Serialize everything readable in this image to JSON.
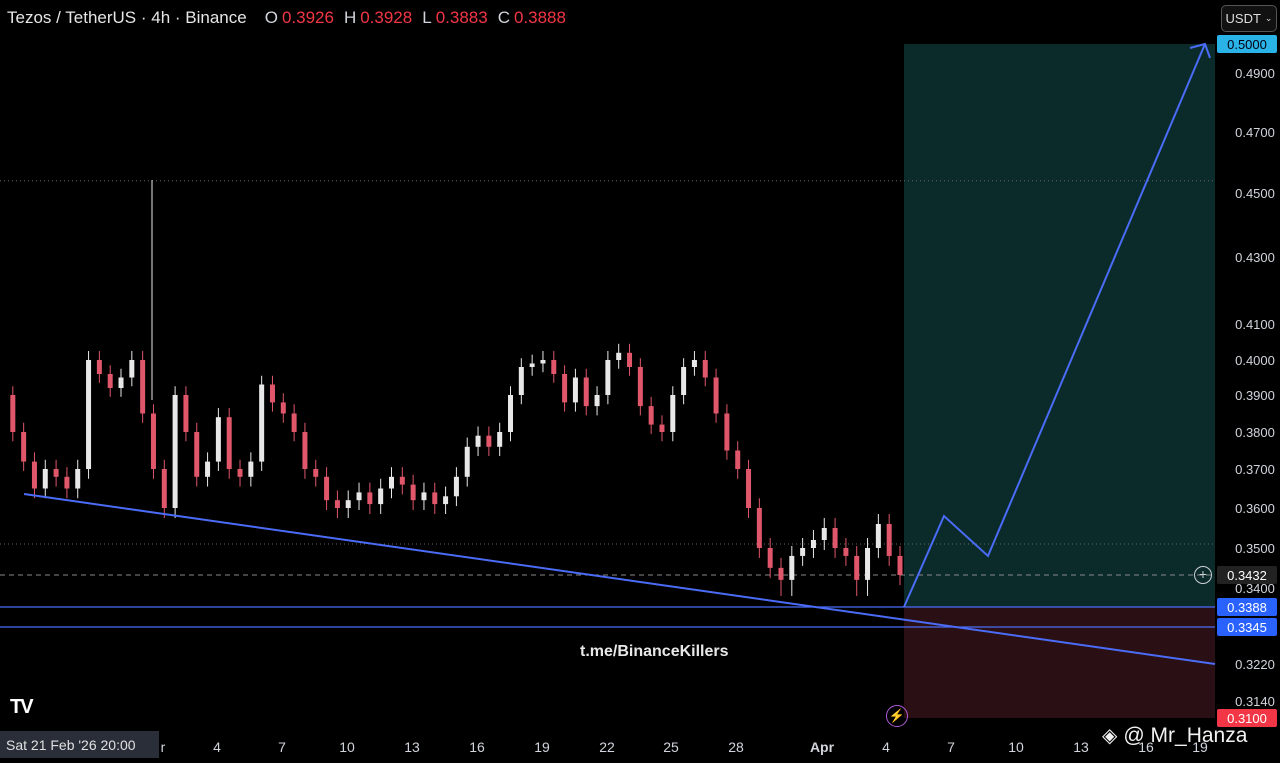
{
  "header": {
    "symbol": "Tezos / TetherUS · 4h · Binance",
    "open_label": "O",
    "open": "0.3926",
    "high_label": "H",
    "high": "0.3928",
    "low_label": "L",
    "low": "0.3883",
    "close_label": "C",
    "close": "0.3888"
  },
  "currency_button": "USDT",
  "date_pill": "Sat 21 Feb '26   20:00",
  "watermark": "t.me/BinanceKillers",
  "credit": "@ Mr_Hanza",
  "colors": {
    "up": "#e8e8e8",
    "down": "#e0566a",
    "trendline": "#4a6cf7",
    "profit_zone": "#0b2a2a",
    "loss_zone": "#2a0f14",
    "target_label_bg": "#2ab3e6",
    "stop_label_bg": "#f23645",
    "level_label_bg": "#2962ff"
  },
  "icons": {
    "tv_logo": "tradingview-logo-icon",
    "plus": "plus-circle-icon",
    "lightning": "lightning-icon",
    "binance": "binance-logo-icon"
  },
  "chart_data": {
    "type": "candlestick",
    "y_axis_ticks": [
      "0.4900",
      "0.4700",
      "0.4500",
      "0.4300",
      "0.4100",
      "0.4000",
      "0.3900",
      "0.3800",
      "0.3700",
      "0.3600",
      "0.3500",
      "0.3400",
      "0.3220",
      "0.3140"
    ],
    "ylim": [
      0.31,
      0.5
    ],
    "price_labels": [
      {
        "value": "0.5000",
        "kind": "target"
      },
      {
        "value": "0.3432",
        "kind": "current"
      },
      {
        "value": "0.3388",
        "kind": "level"
      },
      {
        "value": "0.3345",
        "kind": "level"
      },
      {
        "value": "0.3100",
        "kind": "stop"
      }
    ],
    "x_axis_ticks": [
      "r",
      "4",
      "7",
      "10",
      "13",
      "16",
      "19",
      "22",
      "25",
      "28",
      "Apr",
      "4",
      "7",
      "10",
      "13",
      "16",
      "19"
    ],
    "horizontal_levels": [
      0.454,
      0.351,
      0.3432,
      0.3388,
      0.3345
    ],
    "long_position": {
      "entry": 0.3388,
      "target": 0.5,
      "stop": 0.31
    },
    "trendline": [
      {
        "x": 0,
        "y": 0.363
      },
      {
        "x": 1,
        "y": 0.322
      }
    ],
    "projection_path": [
      0.3388,
      0.358,
      0.348,
      0.5
    ],
    "series": [
      0.39,
      0.38,
      0.372,
      0.365,
      0.37,
      0.368,
      0.365,
      0.37,
      0.4,
      0.396,
      0.392,
      0.395,
      0.4,
      0.385,
      0.37,
      0.36,
      0.39,
      0.38,
      0.368,
      0.372,
      0.384,
      0.37,
      0.368,
      0.372,
      0.393,
      0.388,
      0.385,
      0.38,
      0.37,
      0.368,
      0.362,
      0.36,
      0.362,
      0.364,
      0.361,
      0.365,
      0.368,
      0.366,
      0.362,
      0.364,
      0.361,
      0.363,
      0.368,
      0.376,
      0.379,
      0.376,
      0.38,
      0.39,
      0.398,
      0.399,
      0.4,
      0.396,
      0.388,
      0.395,
      0.387,
      0.39,
      0.4,
      0.402,
      0.398,
      0.387,
      0.382,
      0.38,
      0.39,
      0.398,
      0.4,
      0.395,
      0.385,
      0.375,
      0.37,
      0.36,
      0.35,
      0.345,
      0.342,
      0.348,
      0.35,
      0.352,
      0.355,
      0.35,
      0.348,
      0.342,
      0.35,
      0.356,
      0.348,
      0.3432
    ]
  }
}
